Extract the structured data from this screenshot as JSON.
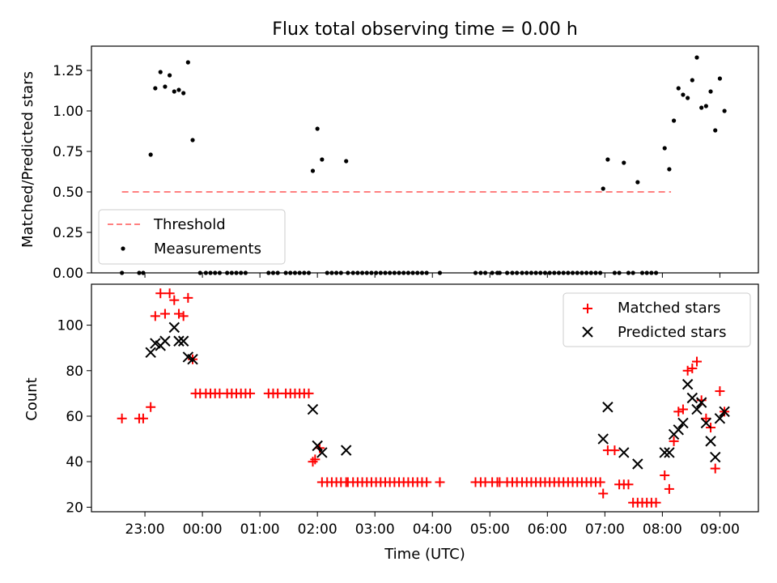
{
  "figure": {
    "title": "Flux total observing time = 0.00 h",
    "xlabel": "Time (UTC)"
  },
  "chart_data": [
    {
      "type": "scatter",
      "title": "Flux total observing time = 0.00 h",
      "ylabel": "Matched/Predicted stars",
      "xlim": [
        -0.93,
        10.67
      ],
      "ylim": [
        0,
        1.4
      ],
      "yticks": [
        0,
        0.25,
        0.5,
        0.75,
        1.0,
        1.25
      ],
      "ytick_labels": [
        "0.00",
        "0.25",
        "0.50",
        "0.75",
        "1.00",
        "1.25"
      ],
      "legend": {
        "location": "lower-left",
        "entries": [
          "Threshold",
          "Measurements"
        ]
      },
      "threshold": {
        "name": "Threshold",
        "color": "#ff8080",
        "x": [
          -0.4,
          9.15
        ],
        "y": 0.5
      },
      "measurements": {
        "name": "Measurements",
        "color": "#000000",
        "points": [
          [
            -0.4,
            0.0
          ],
          [
            -0.1,
            0.0
          ],
          [
            -0.03,
            0.0
          ],
          [
            0.1,
            0.73
          ],
          [
            0.18,
            1.14
          ],
          [
            0.27,
            1.24
          ],
          [
            0.35,
            1.15
          ],
          [
            0.43,
            1.22
          ],
          [
            0.51,
            1.12
          ],
          [
            0.59,
            1.13
          ],
          [
            0.67,
            1.11
          ],
          [
            0.75,
            1.3
          ],
          [
            0.83,
            0.82
          ],
          [
            0.96,
            0.0
          ],
          [
            1.06,
            0.0
          ],
          [
            1.14,
            0.0
          ],
          [
            1.22,
            0.0
          ],
          [
            1.3,
            0.0
          ],
          [
            1.43,
            0.0
          ],
          [
            1.51,
            0.0
          ],
          [
            1.59,
            0.0
          ],
          [
            1.67,
            0.0
          ],
          [
            1.75,
            0.0
          ],
          [
            2.15,
            0.0
          ],
          [
            2.23,
            0.0
          ],
          [
            2.31,
            0.0
          ],
          [
            2.45,
            0.0
          ],
          [
            2.53,
            0.0
          ],
          [
            2.61,
            0.0
          ],
          [
            2.69,
            0.0
          ],
          [
            2.77,
            0.0
          ],
          [
            2.85,
            0.0
          ],
          [
            2.92,
            0.63
          ],
          [
            3.0,
            0.89
          ],
          [
            3.08,
            0.7
          ],
          [
            3.5,
            0.69
          ],
          [
            3.17,
            0.0
          ],
          [
            3.25,
            0.0
          ],
          [
            3.33,
            0.0
          ],
          [
            3.41,
            0.0
          ],
          [
            3.53,
            0.0
          ],
          [
            3.62,
            0.0
          ],
          [
            3.7,
            0.0
          ],
          [
            3.78,
            0.0
          ],
          [
            3.86,
            0.0
          ],
          [
            3.94,
            0.0
          ],
          [
            4.02,
            0.0
          ],
          [
            4.1,
            0.0
          ],
          [
            4.18,
            0.0
          ],
          [
            4.26,
            0.0
          ],
          [
            4.34,
            0.0
          ],
          [
            4.42,
            0.0
          ],
          [
            4.5,
            0.0
          ],
          [
            4.58,
            0.0
          ],
          [
            4.66,
            0.0
          ],
          [
            4.74,
            0.0
          ],
          [
            4.82,
            0.0
          ],
          [
            4.9,
            0.0
          ],
          [
            5.13,
            0.0
          ],
          [
            5.75,
            0.0
          ],
          [
            5.84,
            0.0
          ],
          [
            5.92,
            0.0
          ],
          [
            6.04,
            0.0
          ],
          [
            6.13,
            0.0
          ],
          [
            6.17,
            0.0
          ],
          [
            6.3,
            0.0
          ],
          [
            6.39,
            0.0
          ],
          [
            6.47,
            0.0
          ],
          [
            6.56,
            0.0
          ],
          [
            6.64,
            0.0
          ],
          [
            6.72,
            0.0
          ],
          [
            6.8,
            0.0
          ],
          [
            6.88,
            0.0
          ],
          [
            6.96,
            0.0
          ],
          [
            7.04,
            0.0
          ],
          [
            7.12,
            0.0
          ],
          [
            7.2,
            0.0
          ],
          [
            7.28,
            0.0
          ],
          [
            7.36,
            0.0
          ],
          [
            7.44,
            0.0
          ],
          [
            7.52,
            0.0
          ],
          [
            7.6,
            0.0
          ],
          [
            7.68,
            0.0
          ],
          [
            7.76,
            0.0
          ],
          [
            7.84,
            0.0
          ],
          [
            7.92,
            0.0
          ],
          [
            7.97,
            0.52
          ],
          [
            8.05,
            0.7
          ],
          [
            8.17,
            0.0
          ],
          [
            8.25,
            0.0
          ],
          [
            8.33,
            0.68
          ],
          [
            8.41,
            0.0
          ],
          [
            8.49,
            0.0
          ],
          [
            8.57,
            0.56
          ],
          [
            8.65,
            0.0
          ],
          [
            8.73,
            0.0
          ],
          [
            8.81,
            0.0
          ],
          [
            8.89,
            0.0
          ],
          [
            9.04,
            0.77
          ],
          [
            9.12,
            0.64
          ],
          [
            9.2,
            0.94
          ],
          [
            9.28,
            1.14
          ],
          [
            9.36,
            1.1
          ],
          [
            9.44,
            1.08
          ],
          [
            9.52,
            1.19
          ],
          [
            9.6,
            1.33
          ],
          [
            9.68,
            1.02
          ],
          [
            9.76,
            1.03
          ],
          [
            9.84,
            1.12
          ],
          [
            9.92,
            0.88
          ],
          [
            10.0,
            1.2
          ],
          [
            10.08,
            1.0
          ]
        ]
      }
    },
    {
      "type": "scatter",
      "ylabel": "Count",
      "xlabel": "Time (UTC)",
      "xlim": [
        -0.93,
        10.67
      ],
      "ylim": [
        18,
        118
      ],
      "yticks": [
        20,
        40,
        60,
        80,
        100
      ],
      "ytick_labels": [
        "20",
        "40",
        "60",
        "80",
        "100"
      ],
      "xticks": [
        0,
        1,
        2,
        3,
        4,
        5,
        6,
        7,
        8,
        9,
        10
      ],
      "xtick_labels": [
        "23:00",
        "00:00",
        "01:00",
        "02:00",
        "03:00",
        "04:00",
        "05:00",
        "06:00",
        "07:00",
        "08:00",
        "09:00"
      ],
      "legend": {
        "location": "upper-right",
        "entries": [
          "Matched stars",
          "Predicted stars"
        ]
      },
      "series": [
        {
          "name": "Matched stars",
          "marker": "plus",
          "color": "#ff0000",
          "points": [
            [
              -0.4,
              59
            ],
            [
              -0.1,
              59
            ],
            [
              -0.03,
              59
            ],
            [
              0.1,
              64
            ],
            [
              0.18,
              104
            ],
            [
              0.27,
              114
            ],
            [
              0.35,
              105
            ],
            [
              0.43,
              114
            ],
            [
              0.51,
              111
            ],
            [
              0.59,
              105
            ],
            [
              0.67,
              104
            ],
            [
              0.75,
              112
            ],
            [
              0.83,
              85
            ],
            [
              0.88,
              70
            ],
            [
              0.96,
              70
            ],
            [
              1.06,
              70
            ],
            [
              1.14,
              70
            ],
            [
              1.22,
              70
            ],
            [
              1.3,
              70
            ],
            [
              1.43,
              70
            ],
            [
              1.51,
              70
            ],
            [
              1.59,
              70
            ],
            [
              1.67,
              70
            ],
            [
              1.75,
              70
            ],
            [
              1.83,
              70
            ],
            [
              2.15,
              70
            ],
            [
              2.23,
              70
            ],
            [
              2.31,
              70
            ],
            [
              2.45,
              70
            ],
            [
              2.53,
              70
            ],
            [
              2.61,
              70
            ],
            [
              2.69,
              70
            ],
            [
              2.77,
              70
            ],
            [
              2.85,
              70
            ],
            [
              2.92,
              40
            ],
            [
              2.96,
              41
            ],
            [
              3.04,
              46
            ],
            [
              3.08,
              31
            ],
            [
              3.17,
              31
            ],
            [
              3.25,
              31
            ],
            [
              3.33,
              31
            ],
            [
              3.41,
              31
            ],
            [
              3.5,
              31
            ],
            [
              3.53,
              31
            ],
            [
              3.62,
              31
            ],
            [
              3.7,
              31
            ],
            [
              3.78,
              31
            ],
            [
              3.86,
              31
            ],
            [
              3.94,
              31
            ],
            [
              4.02,
              31
            ],
            [
              4.1,
              31
            ],
            [
              4.18,
              31
            ],
            [
              4.26,
              31
            ],
            [
              4.34,
              31
            ],
            [
              4.42,
              31
            ],
            [
              4.5,
              31
            ],
            [
              4.58,
              31
            ],
            [
              4.66,
              31
            ],
            [
              4.74,
              31
            ],
            [
              4.82,
              31
            ],
            [
              4.9,
              31
            ],
            [
              5.13,
              31
            ],
            [
              5.75,
              31
            ],
            [
              5.84,
              31
            ],
            [
              5.92,
              31
            ],
            [
              6.04,
              31
            ],
            [
              6.13,
              31
            ],
            [
              6.17,
              31
            ],
            [
              6.3,
              31
            ],
            [
              6.39,
              31
            ],
            [
              6.47,
              31
            ],
            [
              6.56,
              31
            ],
            [
              6.64,
              31
            ],
            [
              6.72,
              31
            ],
            [
              6.8,
              31
            ],
            [
              6.88,
              31
            ],
            [
              6.96,
              31
            ],
            [
              7.04,
              31
            ],
            [
              7.12,
              31
            ],
            [
              7.2,
              31
            ],
            [
              7.28,
              31
            ],
            [
              7.36,
              31
            ],
            [
              7.44,
              31
            ],
            [
              7.52,
              31
            ],
            [
              7.6,
              31
            ],
            [
              7.68,
              31
            ],
            [
              7.76,
              31
            ],
            [
              7.84,
              31
            ],
            [
              7.92,
              31
            ],
            [
              7.97,
              26
            ],
            [
              8.05,
              45
            ],
            [
              8.17,
              45
            ],
            [
              8.25,
              30
            ],
            [
              8.33,
              30
            ],
            [
              8.41,
              30
            ],
            [
              8.49,
              22
            ],
            [
              8.57,
              22
            ],
            [
              8.65,
              22
            ],
            [
              8.73,
              22
            ],
            [
              8.81,
              22
            ],
            [
              8.89,
              22
            ],
            [
              9.04,
              34
            ],
            [
              9.12,
              28
            ],
            [
              9.2,
              49
            ],
            [
              9.28,
              62
            ],
            [
              9.36,
              63
            ],
            [
              9.44,
              80
            ],
            [
              9.52,
              81
            ],
            [
              9.6,
              84
            ],
            [
              9.68,
              67
            ],
            [
              9.76,
              59
            ],
            [
              9.84,
              55
            ],
            [
              9.92,
              37
            ],
            [
              10.0,
              71
            ],
            [
              10.08,
              62
            ]
          ]
        },
        {
          "name": "Predicted stars",
          "marker": "x",
          "color": "#000000",
          "points": [
            [
              0.1,
              88
            ],
            [
              0.18,
              92
            ],
            [
              0.27,
              91
            ],
            [
              0.35,
              93
            ],
            [
              0.51,
              99
            ],
            [
              0.59,
              93
            ],
            [
              0.67,
              93
            ],
            [
              0.75,
              86
            ],
            [
              0.83,
              85
            ],
            [
              2.92,
              63
            ],
            [
              3.0,
              47
            ],
            [
              3.08,
              44
            ],
            [
              3.5,
              45
            ],
            [
              7.97,
              50
            ],
            [
              8.05,
              64
            ],
            [
              8.33,
              44
            ],
            [
              8.57,
              39
            ],
            [
              9.04,
              44
            ],
            [
              9.12,
              44
            ],
            [
              9.2,
              52
            ],
            [
              9.28,
              54
            ],
            [
              9.36,
              57
            ],
            [
              9.44,
              74
            ],
            [
              9.52,
              68
            ],
            [
              9.6,
              63
            ],
            [
              9.68,
              66
            ],
            [
              9.76,
              57
            ],
            [
              9.84,
              49
            ],
            [
              9.92,
              42
            ],
            [
              10.0,
              59
            ],
            [
              10.08,
              62
            ]
          ]
        }
      ]
    }
  ]
}
